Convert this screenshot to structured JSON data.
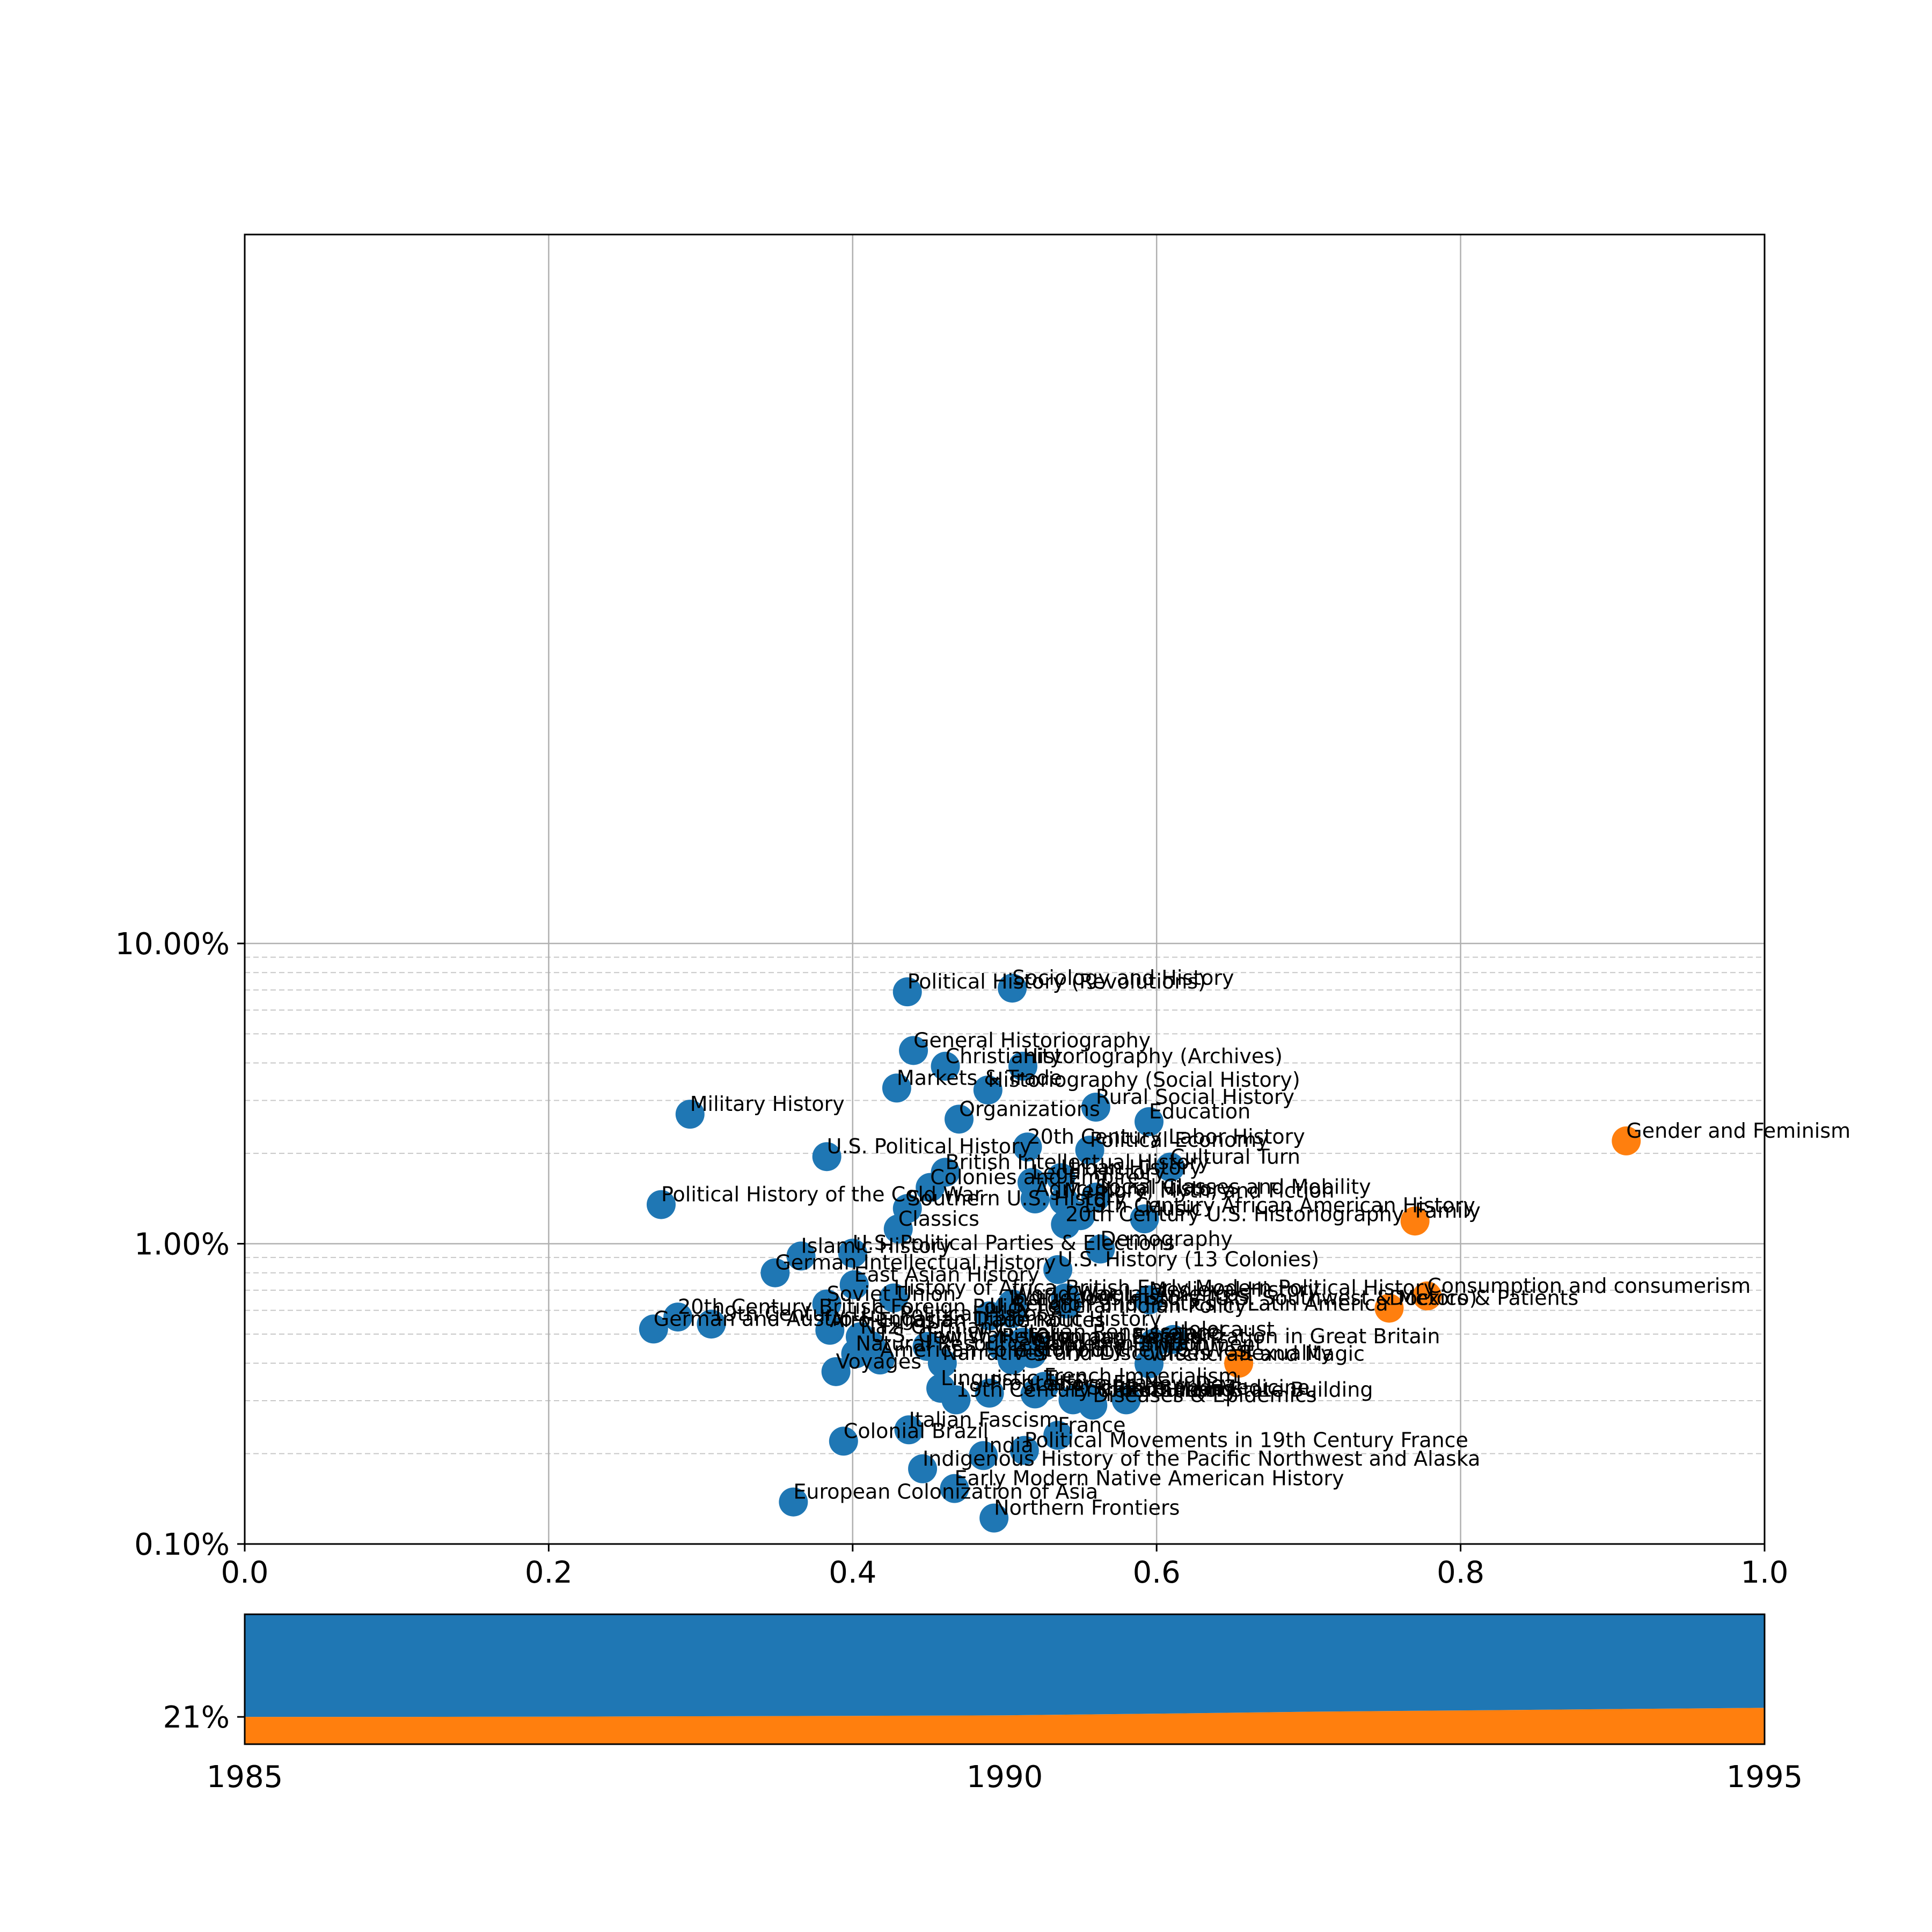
{
  "chart_data": [
    {
      "type": "scatter",
      "title": "",
      "xlabel": "",
      "ylabel": "",
      "xlim": [
        0.0,
        1.0
      ],
      "ylim": [
        0.1,
        15.4
      ],
      "yscale": "log",
      "grid": true,
      "x_tick_labels": [
        "0.0",
        "0.2",
        "0.4",
        "0.6",
        "0.8",
        "1.0"
      ],
      "x_ticks": [
        0.0,
        0.2,
        0.4,
        0.6,
        0.8,
        1.0
      ],
      "y_tick_labels": [
        "0.10%",
        "1.00%",
        "10.00%"
      ],
      "y_ticks": [
        0.1,
        1.0,
        10.0
      ],
      "colors": {
        "base": "#1f77b4",
        "highlight": "#ff7f0e"
      },
      "points": [
        {
          "label": "Sociology and History",
          "x": 0.505,
          "y": 7.1,
          "group": "base"
        },
        {
          "label": "Political History (Revolutions)",
          "x": 0.436,
          "y": 6.9,
          "group": "base"
        },
        {
          "label": "General Historiography",
          "x": 0.44,
          "y": 4.4,
          "group": "base"
        },
        {
          "label": "Christianity",
          "x": 0.461,
          "y": 3.9,
          "group": "base"
        },
        {
          "label": "Historiography (Archives)",
          "x": 0.512,
          "y": 3.9,
          "group": "base"
        },
        {
          "label": "Markets & Trade",
          "x": 0.429,
          "y": 3.3,
          "group": "base"
        },
        {
          "label": "Historiography (Social History)",
          "x": 0.489,
          "y": 3.25,
          "group": "base"
        },
        {
          "label": "Rural Social History",
          "x": 0.56,
          "y": 2.85,
          "group": "base"
        },
        {
          "label": "Military History",
          "x": 0.293,
          "y": 2.7,
          "group": "base"
        },
        {
          "label": "Organizations",
          "x": 0.47,
          "y": 2.6,
          "group": "base"
        },
        {
          "label": "Education",
          "x": 0.595,
          "y": 2.55,
          "group": "base"
        },
        {
          "label": "Gender and Feminism",
          "x": 0.909,
          "y": 2.2,
          "group": "highlight"
        },
        {
          "label": "20th Century Labor History",
          "x": 0.515,
          "y": 2.1,
          "group": "base"
        },
        {
          "label": "Political Economy",
          "x": 0.556,
          "y": 2.05,
          "group": "base"
        },
        {
          "label": "U.S. Political History",
          "x": 0.383,
          "y": 1.95,
          "group": "base"
        },
        {
          "label": "Cultural Turn",
          "x": 0.609,
          "y": 1.8,
          "group": "base"
        },
        {
          "label": "British Intellectual History",
          "x": 0.461,
          "y": 1.73,
          "group": "base"
        },
        {
          "label": "Urban History",
          "x": 0.537,
          "y": 1.66,
          "group": "base"
        },
        {
          "label": "Legal History",
          "x": 0.518,
          "y": 1.6,
          "group": "base"
        },
        {
          "label": "Colonies and Empires",
          "x": 0.451,
          "y": 1.54,
          "group": "base"
        },
        {
          "label": "Social Classes and Mobility",
          "x": 0.56,
          "y": 1.43,
          "group": "base"
        },
        {
          "label": "Agricultural History",
          "x": 0.52,
          "y": 1.41,
          "group": "base"
        },
        {
          "label": "Memory, Myth, and Fiction",
          "x": 0.539,
          "y": 1.39,
          "group": "base"
        },
        {
          "label": "Political History of the Cold War",
          "x": 0.274,
          "y": 1.35,
          "group": "base"
        },
        {
          "label": "Southern U.S. History",
          "x": 0.436,
          "y": 1.31,
          "group": "base"
        },
        {
          "label": "19th Century African American History",
          "x": 0.55,
          "y": 1.24,
          "group": "base"
        },
        {
          "label": "Music",
          "x": 0.592,
          "y": 1.21,
          "group": "base"
        },
        {
          "label": "Family",
          "x": 0.77,
          "y": 1.19,
          "group": "highlight"
        },
        {
          "label": "20th Century U.S. Historiography",
          "x": 0.54,
          "y": 1.16,
          "group": "base"
        },
        {
          "label": "Classics",
          "x": 0.43,
          "y": 1.12,
          "group": "base"
        },
        {
          "label": "Demography",
          "x": 0.563,
          "y": 0.96,
          "group": "base"
        },
        {
          "label": "U.S. Political Parties & Elections",
          "x": 0.4,
          "y": 0.93,
          "group": "base"
        },
        {
          "label": "Islamic History",
          "x": 0.366,
          "y": 0.91,
          "group": "base"
        },
        {
          "label": "U.S. History (13 Colonies)",
          "x": 0.535,
          "y": 0.82,
          "group": "base"
        },
        {
          "label": "German Intellectual History",
          "x": 0.349,
          "y": 0.8,
          "group": "base"
        },
        {
          "label": "East Asian History",
          "x": 0.401,
          "y": 0.73,
          "group": "base"
        },
        {
          "label": "Consumption and consumerism",
          "x": 0.778,
          "y": 0.67,
          "group": "highlight"
        },
        {
          "label": "History of Africa",
          "x": 0.427,
          "y": 0.66,
          "group": "base"
        },
        {
          "label": "British Early Modern Political History",
          "x": 0.54,
          "y": 0.66,
          "group": "base"
        },
        {
          "label": "Medieval History",
          "x": 0.595,
          "y": 0.65,
          "group": "base"
        },
        {
          "label": "World War I",
          "x": 0.505,
          "y": 0.63,
          "group": "base"
        },
        {
          "label": "Colonial Americas",
          "x": 0.541,
          "y": 0.63,
          "group": "base"
        },
        {
          "label": "Soviet Union",
          "x": 0.383,
          "y": 0.63,
          "group": "base"
        },
        {
          "label": "Doctors & Patients",
          "x": 0.753,
          "y": 0.61,
          "group": "highlight"
        },
        {
          "label": "Indigenous History (U.S. Southwest & Mexico)",
          "x": 0.503,
          "y": 0.61,
          "group": "base"
        },
        {
          "label": "Religion and Politics in Latin America",
          "x": 0.505,
          "y": 0.585,
          "group": "base"
        },
        {
          "label": "U.S. Federal Indian Policy",
          "x": 0.49,
          "y": 0.575,
          "group": "base"
        },
        {
          "label": "20th Century British Foreign Policy",
          "x": 0.285,
          "y": 0.57,
          "group": "base"
        },
        {
          "label": "19th Century U.S. Political History",
          "x": 0.307,
          "y": 0.54,
          "group": "base"
        },
        {
          "label": "German and Austro-Hungarian Diplomatic History",
          "x": 0.269,
          "y": 0.52,
          "group": "base"
        },
        {
          "label": "Afro-Eurasian Trade Routes",
          "x": 0.385,
          "y": 0.515,
          "group": "base"
        },
        {
          "label": "Nazi Germany",
          "x": 0.405,
          "y": 0.49,
          "group": "base"
        },
        {
          "label": "Holocaust",
          "x": 0.611,
          "y": 0.48,
          "group": "base"
        },
        {
          "label": "Italian Renaissance",
          "x": 0.512,
          "y": 0.47,
          "group": "base"
        },
        {
          "label": "Ireland",
          "x": 0.598,
          "y": 0.466,
          "group": "base"
        },
        {
          "label": "U.S. Civil War",
          "x": 0.412,
          "y": 0.458,
          "group": "base"
        },
        {
          "label": "Jewish History",
          "x": 0.449,
          "y": 0.455,
          "group": "base"
        },
        {
          "label": "Religion and Secularization in Great Britain",
          "x": 0.498,
          "y": 0.455,
          "group": "base"
        },
        {
          "label": "Ottoman Empire",
          "x": 0.52,
          "y": 0.452,
          "group": "base"
        },
        {
          "label": "Natural Resources and the Environment",
          "x": 0.402,
          "y": 0.43,
          "group": "base"
        },
        {
          "label": "Women in Britain",
          "x": 0.518,
          "y": 0.43,
          "group": "base"
        },
        {
          "label": "American Foreign Policy",
          "x": 0.418,
          "y": 0.41,
          "group": "base"
        },
        {
          "label": "History of the U.S. West",
          "x": 0.505,
          "y": 0.41,
          "group": "base"
        },
        {
          "label": "Narratives and Discourses",
          "x": 0.459,
          "y": 0.4,
          "group": "base"
        },
        {
          "label": "Sexuality",
          "x": 0.654,
          "y": 0.4,
          "group": "highlight"
        },
        {
          "label": "Witchcraft and Magic",
          "x": 0.595,
          "y": 0.398,
          "group": "base"
        },
        {
          "label": "Voyages",
          "x": 0.389,
          "y": 0.375,
          "group": "base"
        },
        {
          "label": "French Imperialism",
          "x": 0.526,
          "y": 0.335,
          "group": "base"
        },
        {
          "label": "Linguistic Turn",
          "x": 0.458,
          "y": 0.33,
          "group": "base"
        },
        {
          "label": "Progressive Era",
          "x": 0.49,
          "y": 0.318,
          "group": "base"
        },
        {
          "label": "Labor and New Deal",
          "x": 0.52,
          "y": 0.316,
          "group": "base"
        },
        {
          "label": "Science and Medicine",
          "x": 0.555,
          "y": 0.307,
          "group": "base"
        },
        {
          "label": "19th Century Urban History",
          "x": 0.468,
          "y": 0.302,
          "group": "base"
        },
        {
          "label": "Empire Building",
          "x": 0.545,
          "y": 0.302,
          "group": "base"
        },
        {
          "label": "European State Building",
          "x": 0.58,
          "y": 0.302,
          "group": "base"
        },
        {
          "label": "Diseases & Epidemics",
          "x": 0.558,
          "y": 0.29,
          "group": "base"
        },
        {
          "label": "Italian Fascism",
          "x": 0.437,
          "y": 0.24,
          "group": "base"
        },
        {
          "label": "France",
          "x": 0.535,
          "y": 0.23,
          "group": "base"
        },
        {
          "label": "Colonial Brazil",
          "x": 0.394,
          "y": 0.22,
          "group": "base"
        },
        {
          "label": "Political Movements in 19th Century France",
          "x": 0.513,
          "y": 0.205,
          "group": "base"
        },
        {
          "label": "India",
          "x": 0.486,
          "y": 0.197,
          "group": "base"
        },
        {
          "label": "Indigenous History of the Pacific Northwest and Alaska",
          "x": 0.446,
          "y": 0.178,
          "group": "base"
        },
        {
          "label": "Early Modern Native American History",
          "x": 0.467,
          "y": 0.153,
          "group": "base"
        },
        {
          "label": "European Colonization of Asia",
          "x": 0.361,
          "y": 0.138,
          "group": "base"
        },
        {
          "label": "Northern Frontiers",
          "x": 0.493,
          "y": 0.122,
          "group": "base"
        }
      ]
    },
    {
      "type": "area",
      "stacked": true,
      "xlim": [
        1985,
        1995
      ],
      "ylim": [
        0.0,
        1.0
      ],
      "x_tick_labels": [
        "1985",
        "1990",
        "1995"
      ],
      "y_tick_labels": [
        "21%"
      ],
      "y_tick_values": [
        0.21
      ],
      "x": [
        1985,
        1986,
        1987,
        1988,
        1989,
        1990,
        1991,
        1992,
        1993,
        1994,
        1995
      ],
      "series": [
        {
          "color": "#ff7f0e",
          "values": [
            0.21,
            0.21,
            0.212,
            0.215,
            0.218,
            0.222,
            0.235,
            0.25,
            0.26,
            0.27,
            0.28
          ]
        },
        {
          "color": "#1f77b4",
          "values": [
            0.79,
            0.79,
            0.788,
            0.785,
            0.782,
            0.778,
            0.765,
            0.75,
            0.74,
            0.73,
            0.72
          ]
        }
      ]
    }
  ]
}
